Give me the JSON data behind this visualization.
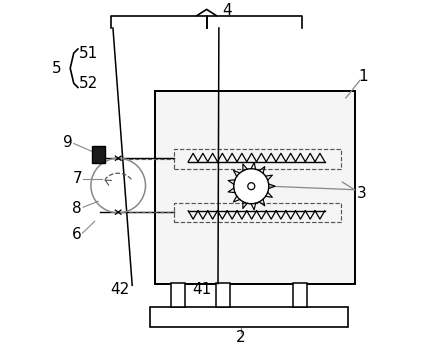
{
  "background_color": "#ffffff",
  "line_color": "#000000",
  "gray_color": "#888888",
  "dashed_color": "#555555",
  "font_size": 11
}
